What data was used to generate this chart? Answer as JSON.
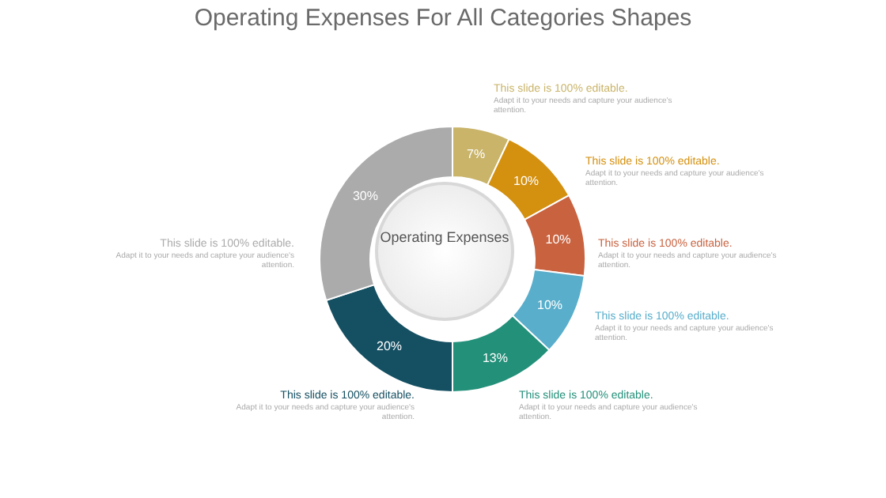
{
  "chart_data": {
    "type": "donut",
    "title": "Operating Expenses For All Categories Shapes",
    "categories": [
      null,
      null,
      null,
      null,
      null,
      null,
      null
    ],
    "values": [
      7,
      10,
      10,
      10,
      13,
      20,
      30
    ],
    "colors": [
      "#c9b46a",
      "#d4900f",
      "#c8623f",
      "#58aecb",
      "#23907a",
      "#144f62",
      "#ababab"
    ],
    "value_labels": [
      "7%",
      "10%",
      "10%",
      "10%",
      "13%",
      "20%",
      "30%"
    ],
    "annotations": [
      "Operating Expenses",
      "This slide is 100% editable.",
      "Adapt it to your needs and capture your audience's attention.",
      "This slide is 100% editable.",
      "Adapt it to your needs and capture your audience's attention.",
      "This slide is 100% editable.",
      "Adapt it to your needs and capture your audience's attention.",
      "This slide is 100% editable.",
      "Adapt it to your needs and capture your audience's attention.",
      "This slide is 100% editable.",
      "Adapt it to your needs and capture your audience's attention.",
      "This slide is 100% editable.",
      "Adapt it to your needs and capture your audience's attention.",
      "This slide is 100% editable.",
      "Adapt it to your needs and capture your audience's attention."
    ]
  }
}
